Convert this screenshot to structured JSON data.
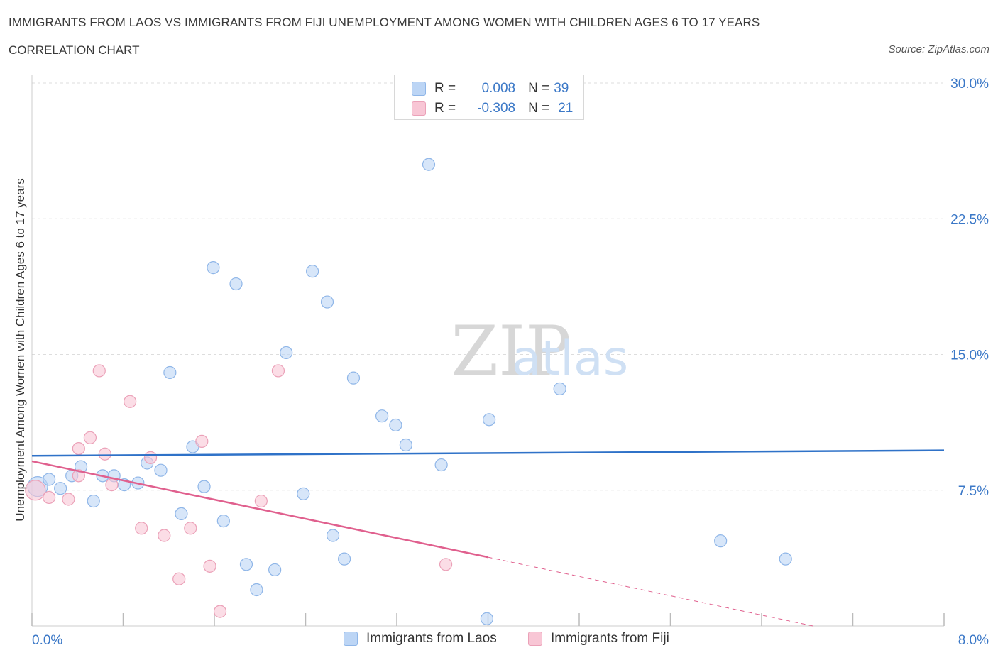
{
  "header": {
    "title": "IMMIGRANTS FROM LAOS VS IMMIGRANTS FROM FIJI UNEMPLOYMENT AMONG WOMEN WITH CHILDREN AGES 6 TO 17 YEARS",
    "subtitle": "CORRELATION CHART",
    "source": "Source: ZipAtlas.com"
  },
  "legend": {
    "laos": {
      "r_label": "R =",
      "r_value": "0.008",
      "n_label": "N =",
      "n_value": "39"
    },
    "fiji": {
      "r_label": "R =",
      "r_value": "-0.308",
      "n_label": "N =",
      "n_value": "21"
    }
  },
  "watermark": {
    "zip": "ZIP",
    "atlas": "atlas"
  },
  "colors": {
    "laos_fill": "#bcd5f5",
    "laos_stroke": "#8fb6e8",
    "laos_line": "#2f72c8",
    "fiji_fill": "#f8c6d5",
    "fiji_stroke": "#eba1b8",
    "fiji_line": "#e0608e",
    "axis_text": "#3b78c7",
    "grid": "#dddddd"
  },
  "chart_data": {
    "type": "scatter",
    "title": "IMMIGRANTS FROM LAOS VS IMMIGRANTS FROM FIJI UNEMPLOYMENT AMONG WOMEN WITH CHILDREN AGES 6 TO 17 YEARS",
    "xlabel": "",
    "ylabel": "Unemployment Among Women with Children Ages 6 to 17 years",
    "xlim": [
      0,
      8
    ],
    "ylim": [
      0,
      30
    ],
    "x_tick_labels": [
      "0.0%",
      "8.0%"
    ],
    "y_ticks": [
      7.5,
      15,
      22.5,
      30
    ],
    "y_tick_labels": [
      "7.5%",
      "15.0%",
      "22.5%",
      "30.0%"
    ],
    "grid": true,
    "series": [
      {
        "name": "Immigrants from Laos",
        "points": [
          [
            0.05,
            7.7
          ],
          [
            0.15,
            8.1
          ],
          [
            0.25,
            7.6
          ],
          [
            0.35,
            8.3
          ],
          [
            0.43,
            8.8
          ],
          [
            0.54,
            6.9
          ],
          [
            0.62,
            8.3
          ],
          [
            0.72,
            8.3
          ],
          [
            0.81,
            7.8
          ],
          [
            0.93,
            7.9
          ],
          [
            1.01,
            9.0
          ],
          [
            1.13,
            8.6
          ],
          [
            1.21,
            14.0
          ],
          [
            1.31,
            6.2
          ],
          [
            1.41,
            9.9
          ],
          [
            1.51,
            7.7
          ],
          [
            1.59,
            19.8
          ],
          [
            1.68,
            5.8
          ],
          [
            1.79,
            18.9
          ],
          [
            1.88,
            3.4
          ],
          [
            1.97,
            2.0
          ],
          [
            2.13,
            3.1
          ],
          [
            2.23,
            15.1
          ],
          [
            2.38,
            7.3
          ],
          [
            2.46,
            19.6
          ],
          [
            2.59,
            17.9
          ],
          [
            2.64,
            5.0
          ],
          [
            2.74,
            3.7
          ],
          [
            2.82,
            13.7
          ],
          [
            3.07,
            11.6
          ],
          [
            3.19,
            11.1
          ],
          [
            3.28,
            10.0
          ],
          [
            3.48,
            25.5
          ],
          [
            3.59,
            8.9
          ],
          [
            3.99,
            0.4
          ],
          [
            4.01,
            11.4
          ],
          [
            4.63,
            13.1
          ],
          [
            6.04,
            4.7
          ],
          [
            6.61,
            3.7
          ]
        ]
      },
      {
        "name": "Immigrants from Fiji",
        "points": [
          [
            0.03,
            7.5
          ],
          [
            0.15,
            7.1
          ],
          [
            0.32,
            7.0
          ],
          [
            0.41,
            8.3
          ],
          [
            0.41,
            9.8
          ],
          [
            0.51,
            10.4
          ],
          [
            0.59,
            14.1
          ],
          [
            0.64,
            9.5
          ],
          [
            0.7,
            7.8
          ],
          [
            0.86,
            12.4
          ],
          [
            0.96,
            5.4
          ],
          [
            1.04,
            9.3
          ],
          [
            1.16,
            5.0
          ],
          [
            1.29,
            2.6
          ],
          [
            1.39,
            5.4
          ],
          [
            1.49,
            10.2
          ],
          [
            1.56,
            3.3
          ],
          [
            1.65,
            0.8
          ],
          [
            2.01,
            6.9
          ],
          [
            2.16,
            14.1
          ],
          [
            3.63,
            3.4
          ]
        ]
      }
    ],
    "trend_lines": [
      {
        "series": "Immigrants from Laos",
        "x": [
          0.0,
          8.0
        ],
        "y": [
          9.4,
          9.7
        ],
        "style": "solid"
      },
      {
        "series": "Immigrants from Fiji",
        "x": [
          0.0,
          4.0
        ],
        "y": [
          9.1,
          3.8
        ],
        "style": "solid"
      },
      {
        "series": "Immigrants from Fiji",
        "x": [
          4.0,
          6.85
        ],
        "y": [
          3.8,
          0.0
        ],
        "style": "dashed"
      }
    ]
  },
  "bottom_legend": [
    {
      "label": "Immigrants from Laos"
    },
    {
      "label": "Immigrants from Fiji"
    }
  ]
}
